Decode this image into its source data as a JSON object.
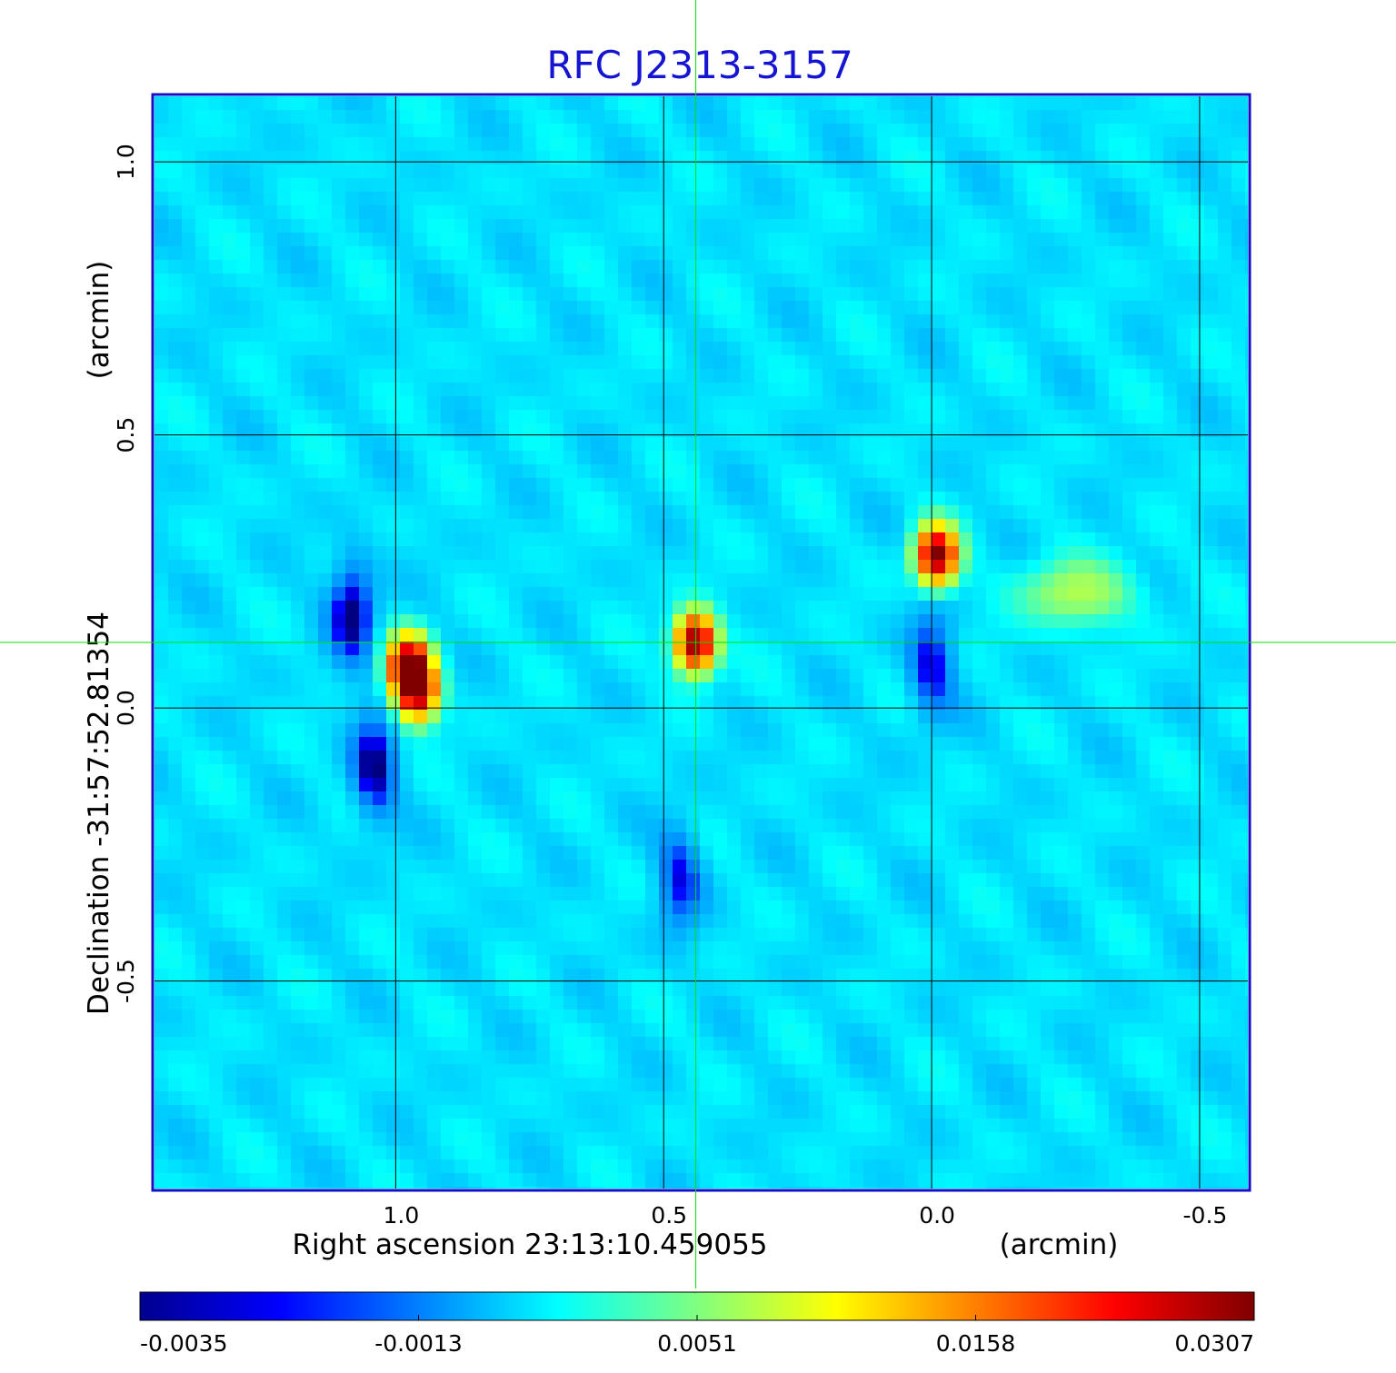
{
  "chart_data": {
    "type": "heatmap",
    "title": "RFC J2313-3157",
    "xlabel": "Right ascension  23:13:10.459055",
    "xunit": "(arcmin)",
    "ylabel": "Declination  -31:57:52.81354",
    "yunit": "(arcmin)",
    "xlim": [
      1.45,
      -0.59
    ],
    "ylim": [
      -0.88,
      1.12
    ],
    "x_ticks": [
      1.0,
      0.5,
      0.0,
      -0.5
    ],
    "x_tick_labels": [
      "1.0",
      "0.5",
      "0.0",
      "-0.5"
    ],
    "y_ticks": [
      1.0,
      0.5,
      0.0,
      -0.5
    ],
    "y_tick_labels": [
      "1.0",
      "0.5",
      "0.0",
      "-0.5"
    ],
    "grid": true,
    "crosshair": {
      "x": 0.44,
      "y": 0.12
    },
    "colorbar": {
      "ticks": [
        -0.0035,
        -0.0013,
        0.0051,
        0.0158,
        0.0307
      ],
      "tick_labels": [
        "-0.0035",
        "-0.0013",
        "0.0051",
        "0.0158",
        "0.0307"
      ],
      "colormap": "jet"
    },
    "background_level": 0.0012,
    "sources": [
      {
        "name": "component-left-core",
        "x": 0.975,
        "y": 0.08,
        "peak": 0.0307
      },
      {
        "name": "component-left-lobe",
        "x": 0.96,
        "y": 0.03,
        "peak": 0.028
      },
      {
        "name": "component-center-core",
        "x": 0.44,
        "y": 0.12,
        "peak": 0.0307
      },
      {
        "name": "component-right-core",
        "x": -0.01,
        "y": 0.28,
        "peak": 0.0307
      },
      {
        "name": "diffuse-right",
        "x": -0.27,
        "y": 0.21,
        "peak": 0.007
      }
    ],
    "negative_regions": [
      {
        "name": "neg-left-upper",
        "x": 1.08,
        "y": 0.18,
        "peak": -0.0035
      },
      {
        "name": "neg-left-lower",
        "x": 1.04,
        "y": -0.11,
        "peak": -0.0032
      },
      {
        "name": "neg-center-lower",
        "x": 0.47,
        "y": -0.31,
        "peak": -0.0022
      },
      {
        "name": "neg-right-lower",
        "x": 0.0,
        "y": 0.08,
        "peak": -0.0026
      }
    ]
  },
  "colors": {
    "title": "#1414d2",
    "frame": "#1010c8",
    "grid": "#000000",
    "crosshair": "#00e000"
  }
}
